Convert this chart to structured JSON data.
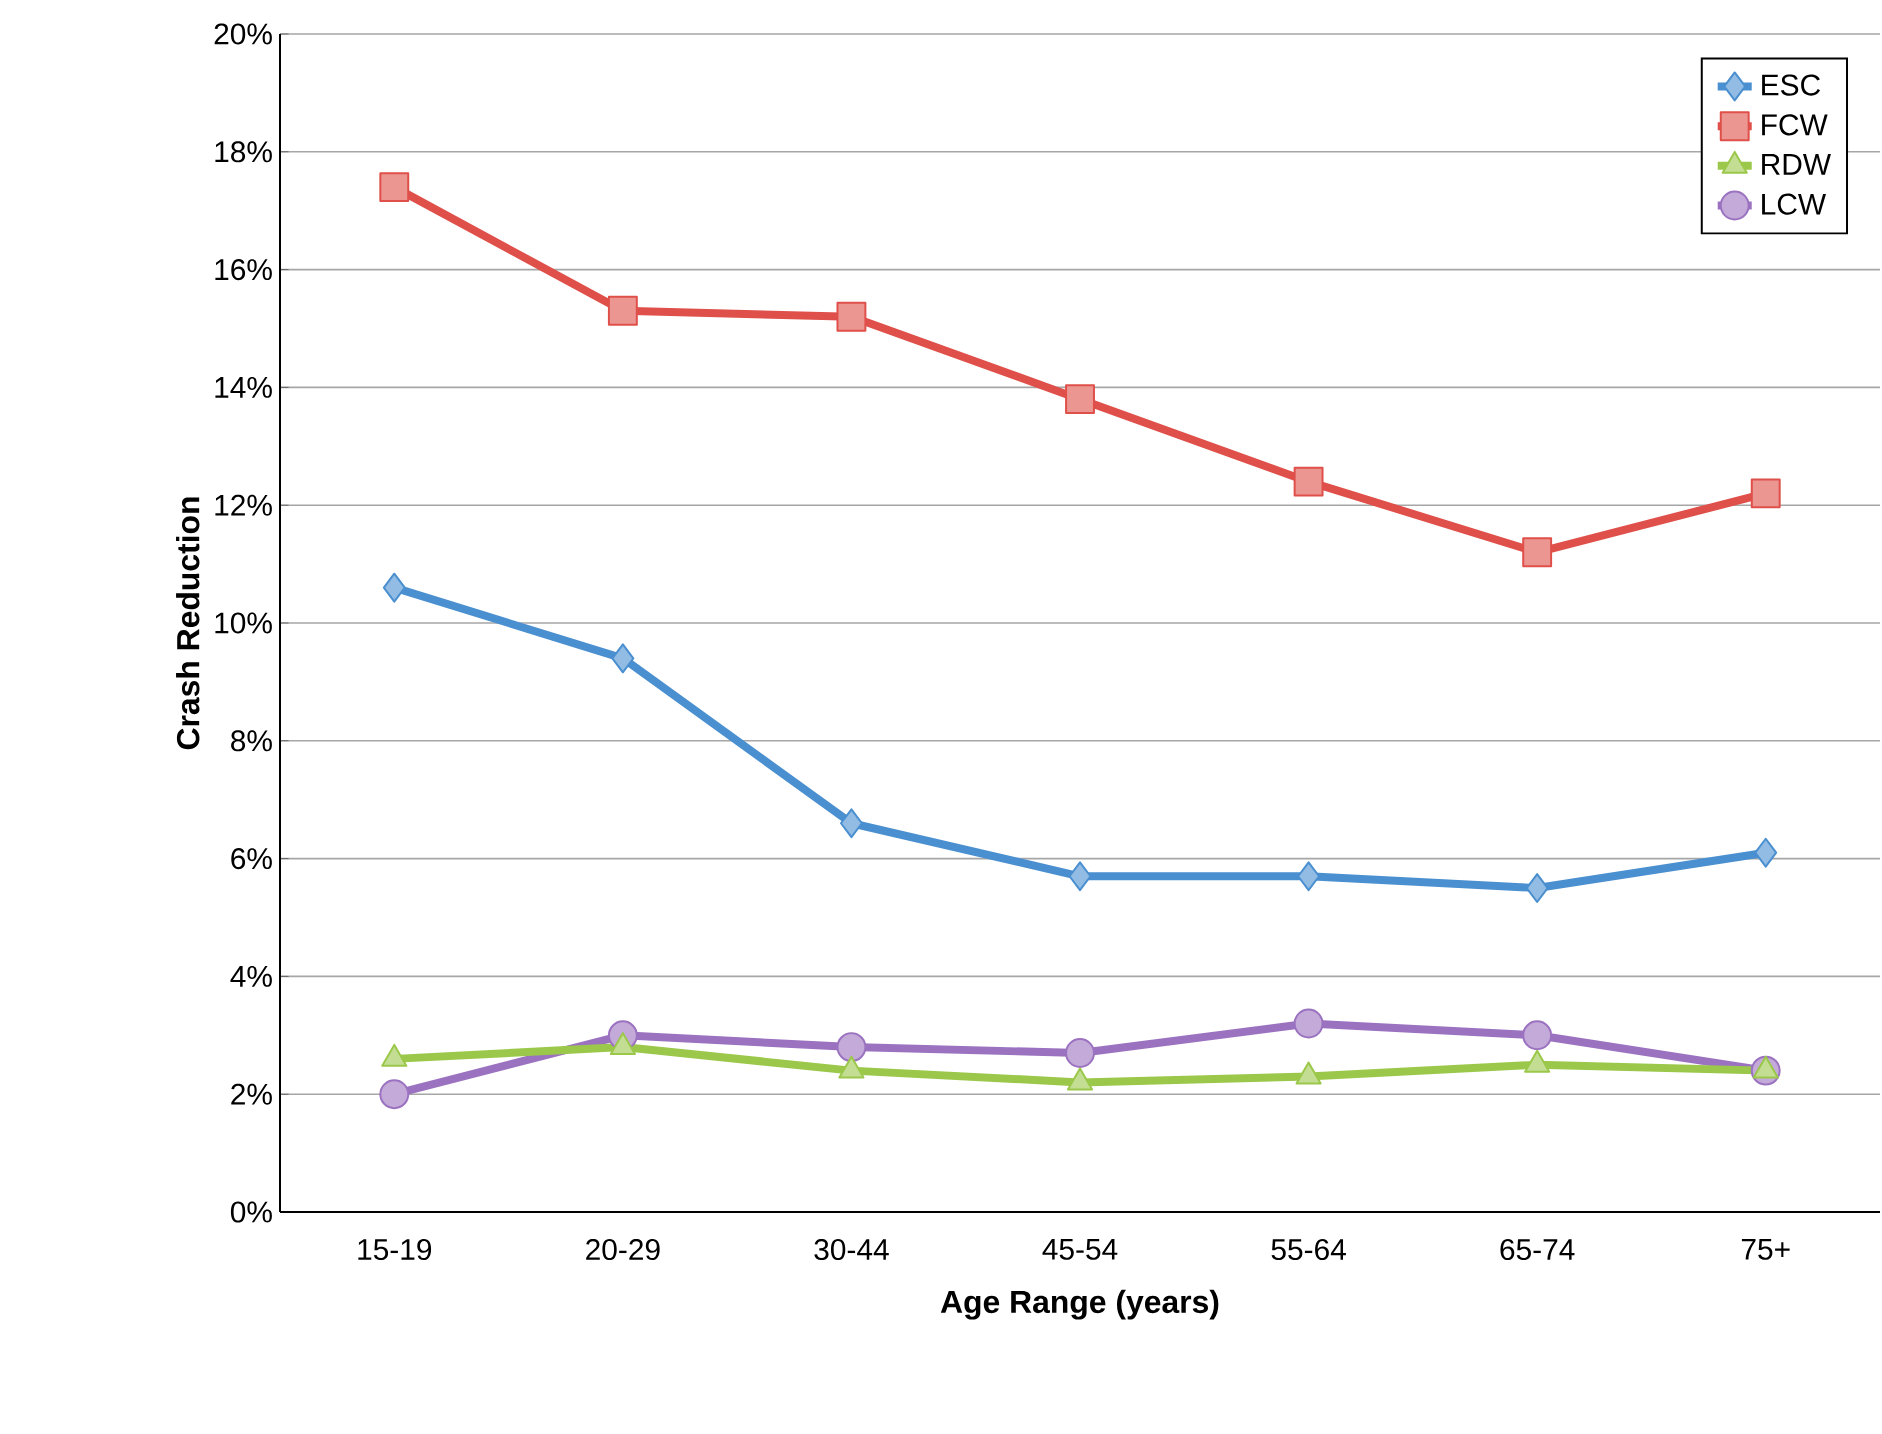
{
  "chart_data": {
    "type": "line",
    "xlabel": "Age Range (years)",
    "ylabel": "Crash Reduction",
    "categories": [
      "15-19",
      "20-29",
      "30-44",
      "45-54",
      "55-64",
      "65-74",
      "75+"
    ],
    "series": [
      {
        "name": "ESC",
        "color": "#4a8fd0",
        "marker": "diamond",
        "values": [
          10.6,
          9.4,
          6.6,
          5.7,
          5.7,
          5.5,
          6.1
        ]
      },
      {
        "name": "FCW",
        "color": "#e0504a",
        "marker": "square",
        "values": [
          17.4,
          15.3,
          15.2,
          13.8,
          12.4,
          11.2,
          12.2
        ]
      },
      {
        "name": "RDW",
        "color": "#9bc84a",
        "marker": "triangle",
        "values": [
          2.6,
          2.8,
          2.4,
          2.2,
          2.3,
          2.5,
          2.4
        ]
      },
      {
        "name": "LCW",
        "color": "#9b72c0",
        "marker": "circle",
        "values": [
          2.0,
          3.0,
          2.8,
          2.7,
          3.2,
          3.0,
          2.4
        ]
      }
    ],
    "ylim": [
      0,
      20
    ],
    "yticks": [
      {
        "value": 0,
        "label": "0%"
      },
      {
        "value": 2,
        "label": "2%"
      },
      {
        "value": 4,
        "label": "4%"
      },
      {
        "value": 6,
        "label": "6%"
      },
      {
        "value": 8,
        "label": "8%"
      },
      {
        "value": 10,
        "label": "10%"
      },
      {
        "value": 12,
        "label": "12%"
      },
      {
        "value": 14,
        "label": "14%"
      },
      {
        "value": 16,
        "label": "16%"
      },
      {
        "value": 18,
        "label": "18%"
      },
      {
        "value": 20,
        "label": "20%"
      }
    ],
    "grid": "y",
    "legend": "top right",
    "line_style": "solid"
  }
}
